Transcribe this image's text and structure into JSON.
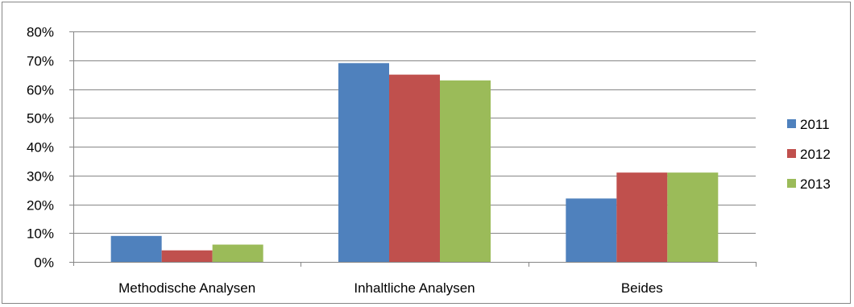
{
  "chart_data": {
    "type": "bar",
    "title": "",
    "xlabel": "",
    "ylabel": "",
    "categories": [
      "Methodische Analysen",
      "Inhaltliche Analysen",
      "Beides"
    ],
    "series": [
      {
        "name": "2011",
        "color": "#4f81bd",
        "values": [
          9,
          69,
          22
        ]
      },
      {
        "name": "2012",
        "color": "#c0504d",
        "values": [
          4,
          65,
          31
        ]
      },
      {
        "name": "2013",
        "color": "#9bbb59",
        "values": [
          6,
          63,
          31
        ]
      }
    ],
    "ylim": [
      0,
      80
    ],
    "yticks": [
      0,
      10,
      20,
      30,
      40,
      50,
      60,
      70,
      80
    ],
    "ytick_labels": [
      "0%",
      "10%",
      "20%",
      "30%",
      "40%",
      "50%",
      "60%",
      "70%",
      "80%"
    ],
    "grid": true,
    "legend_position": "right"
  }
}
